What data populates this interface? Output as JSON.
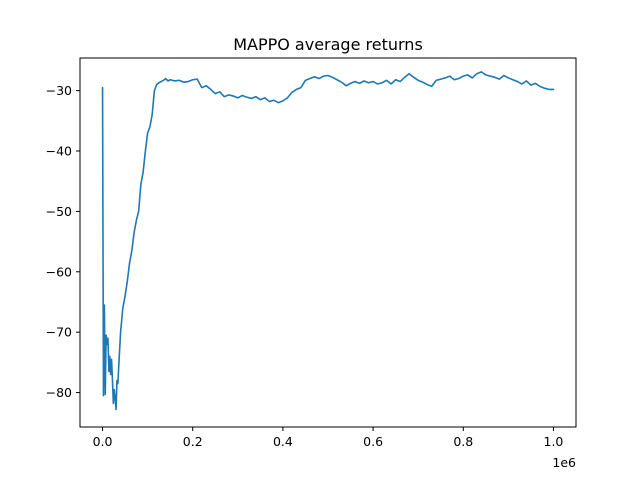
{
  "chart_data": {
    "type": "line",
    "title": "MAPPO average returns",
    "xlabel": "",
    "ylabel": "",
    "x_offset_label": "1e6",
    "xlim": [
      -0.05,
      1.05
    ],
    "ylim": [
      -85.7,
      -24.6
    ],
    "x_ticks": [
      0.0,
      0.2,
      0.4,
      0.6,
      0.8,
      1.0
    ],
    "x_tick_labels": [
      "0.0",
      "0.2",
      "0.4",
      "0.6",
      "0.8",
      "1.0"
    ],
    "y_ticks": [
      -80,
      -70,
      -60,
      -50,
      -40,
      -30
    ],
    "y_tick_labels": [
      "−80",
      "−70",
      "−60",
      "−50",
      "−40",
      "−30"
    ],
    "grid": false,
    "series": [
      {
        "color": "#1f77b4",
        "x": [
          0.0,
          0.002,
          0.004,
          0.006,
          0.008,
          0.01,
          0.012,
          0.014,
          0.016,
          0.018,
          0.02,
          0.022,
          0.024,
          0.026,
          0.028,
          0.03,
          0.032,
          0.034,
          0.036,
          0.04,
          0.045,
          0.05,
          0.055,
          0.06,
          0.065,
          0.07,
          0.075,
          0.08,
          0.085,
          0.09,
          0.095,
          0.1,
          0.105,
          0.11,
          0.115,
          0.12,
          0.125,
          0.13,
          0.135,
          0.14,
          0.145,
          0.15,
          0.16,
          0.17,
          0.18,
          0.19,
          0.2,
          0.21,
          0.22,
          0.23,
          0.24,
          0.25,
          0.26,
          0.27,
          0.28,
          0.29,
          0.3,
          0.31,
          0.32,
          0.33,
          0.34,
          0.35,
          0.36,
          0.37,
          0.38,
          0.39,
          0.4,
          0.41,
          0.42,
          0.43,
          0.44,
          0.45,
          0.46,
          0.47,
          0.48,
          0.49,
          0.5,
          0.51,
          0.52,
          0.53,
          0.54,
          0.55,
          0.56,
          0.57,
          0.58,
          0.59,
          0.6,
          0.61,
          0.62,
          0.63,
          0.64,
          0.65,
          0.66,
          0.67,
          0.68,
          0.69,
          0.7,
          0.71,
          0.72,
          0.73,
          0.74,
          0.75,
          0.76,
          0.77,
          0.78,
          0.79,
          0.8,
          0.81,
          0.82,
          0.83,
          0.84,
          0.85,
          0.86,
          0.87,
          0.88,
          0.89,
          0.9,
          0.91,
          0.92,
          0.93,
          0.94,
          0.95,
          0.96,
          0.97,
          0.98,
          0.99,
          1.0
        ],
        "values": [
          -29.5,
          -80.5,
          -65.5,
          -80.3,
          -70.5,
          -72.0,
          -71.0,
          -76.5,
          -74.0,
          -77.0,
          -74.5,
          -78.0,
          -81.8,
          -79.5,
          -81.0,
          -82.8,
          -78.0,
          -78.5,
          -75.5,
          -70.0,
          -66.0,
          -64.0,
          -61.5,
          -58.5,
          -56.5,
          -53.5,
          -51.5,
          -50.0,
          -45.5,
          -43.5,
          -40.0,
          -37.0,
          -36.0,
          -34.0,
          -30.0,
          -29.0,
          -28.7,
          -28.5,
          -28.3,
          -28.0,
          -28.4,
          -28.2,
          -28.4,
          -28.3,
          -28.6,
          -28.5,
          -28.2,
          -28.1,
          -29.5,
          -29.2,
          -29.8,
          -30.5,
          -30.2,
          -31.0,
          -30.7,
          -30.9,
          -31.2,
          -30.8,
          -31.1,
          -31.3,
          -31.0,
          -31.5,
          -31.2,
          -31.8,
          -31.6,
          -32.0,
          -31.7,
          -31.2,
          -30.3,
          -29.8,
          -29.5,
          -28.3,
          -28.0,
          -27.7,
          -28.0,
          -27.6,
          -27.5,
          -27.8,
          -28.2,
          -28.6,
          -29.2,
          -28.8,
          -28.5,
          -28.8,
          -28.4,
          -28.7,
          -28.5,
          -28.9,
          -28.7,
          -28.3,
          -28.9,
          -28.2,
          -28.5,
          -27.8,
          -27.2,
          -27.8,
          -28.3,
          -28.6,
          -29.0,
          -29.3,
          -28.3,
          -28.1,
          -27.9,
          -27.6,
          -28.2,
          -28.0,
          -27.6,
          -27.4,
          -27.9,
          -27.2,
          -26.9,
          -27.4,
          -27.6,
          -27.8,
          -28.1,
          -27.5,
          -27.9,
          -28.2,
          -28.5,
          -28.9,
          -28.4,
          -29.1,
          -28.8,
          -29.3,
          -29.6,
          -29.8,
          -29.8
        ]
      }
    ]
  }
}
